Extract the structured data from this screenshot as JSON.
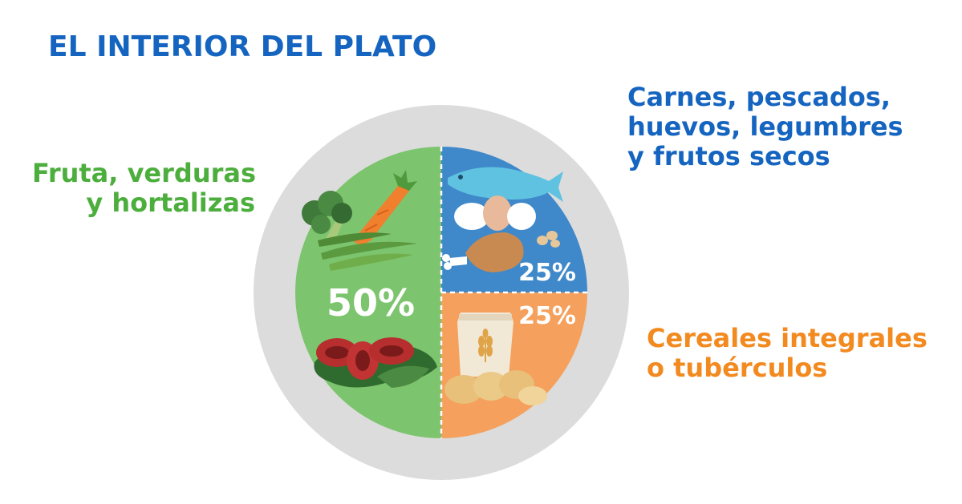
{
  "title": "EL INTERIOR DEL PLATO",
  "colors": {
    "title": "#1565c0",
    "plate": "#dcdcdc",
    "fruta": "#7dc46e",
    "carnes": "#3f88c9",
    "cereales": "#f5a05c",
    "fruta_label": "#4cae3c",
    "carnes_label": "#1565c0",
    "cereales_label": "#f28a1f"
  },
  "sections": [
    {
      "id": "fruta",
      "label_lines": [
        "Fruta, verduras",
        "y hortalizas"
      ],
      "percent_label": "50%",
      "value": 50,
      "icons": [
        "broccoli-icon",
        "carrot-icon",
        "green-bean-icon",
        "tomato-icon",
        "lettuce-icon"
      ]
    },
    {
      "id": "carnes",
      "label_lines": [
        "Carnes, pescados,",
        "huevos, legumbres",
        "y frutos secos"
      ],
      "percent_label": "25%",
      "value": 25,
      "icons": [
        "fish-icon",
        "egg-icon",
        "chicken-icon",
        "nut-icon"
      ]
    },
    {
      "id": "cereales",
      "label_lines": [
        "Cereales integrales",
        "o tubérculos"
      ],
      "percent_label": "25%",
      "value": 25,
      "icons": [
        "grain-sack-icon",
        "wheat-icon",
        "potato-icon"
      ]
    }
  ]
}
